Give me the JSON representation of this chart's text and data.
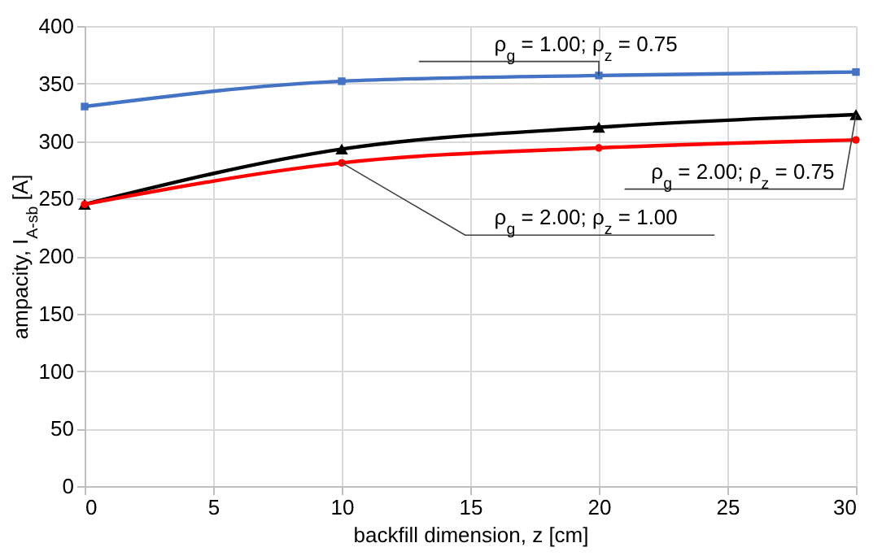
{
  "chart_data": {
    "type": "line",
    "xlabel": "backfill dimension, z [cm]",
    "ylabel": "ampacity, I$_{A-sb}$ [A]",
    "x": [
      0,
      10,
      20,
      30
    ],
    "series": [
      {
        "name": "ρ$_{g}$ = 1.00;  ρ$_{z}$ = 0.75",
        "color": "#4472c4",
        "marker": "square",
        "values": [
          330,
          352,
          357,
          360
        ]
      },
      {
        "name": "ρ$_{g}$ = 2.00;  ρ$_{z}$ = 0.75",
        "color": "#000000",
        "marker": "triangle",
        "values": [
          245,
          293,
          312,
          323
        ]
      },
      {
        "name": "ρ$_{g}$ = 2.00;  ρ$_{z}$ = 1.00",
        "color": "#ff0000",
        "marker": "circle",
        "values": [
          245,
          281,
          294,
          301
        ]
      }
    ],
    "xlim": [
      0,
      30
    ],
    "xticks": [
      0,
      5,
      10,
      15,
      20,
      25,
      30
    ],
    "ylim": [
      0,
      400
    ],
    "yticks": [
      0,
      50,
      100,
      150,
      200,
      250,
      300,
      350,
      400
    ],
    "grid": true,
    "legend": false,
    "line_style": "solid"
  }
}
